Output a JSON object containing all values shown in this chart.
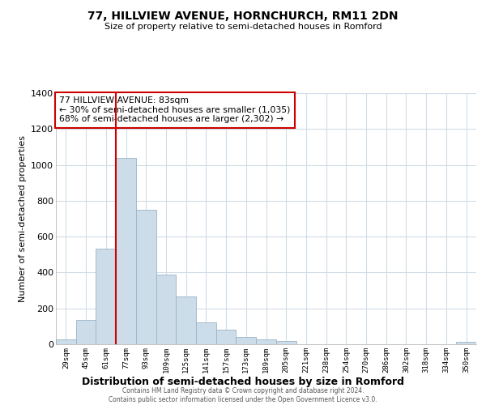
{
  "title": "77, HILLVIEW AVENUE, HORNCHURCH, RM11 2DN",
  "subtitle": "Size of property relative to semi-detached houses in Romford",
  "xlabel": "Distribution of semi-detached houses by size in Romford",
  "ylabel": "Number of semi-detached properties",
  "bar_color": "#ccdce8",
  "bar_edge_color": "#9ab4c8",
  "bin_labels": [
    "29sqm",
    "45sqm",
    "61sqm",
    "77sqm",
    "93sqm",
    "109sqm",
    "125sqm",
    "141sqm",
    "157sqm",
    "173sqm",
    "189sqm",
    "205sqm",
    "221sqm",
    "238sqm",
    "254sqm",
    "270sqm",
    "286sqm",
    "302sqm",
    "318sqm",
    "334sqm",
    "350sqm"
  ],
  "bar_heights": [
    28,
    135,
    535,
    1040,
    750,
    390,
    265,
    120,
    80,
    40,
    28,
    18,
    0,
    0,
    0,
    0,
    0,
    0,
    0,
    0,
    12
  ],
  "vline_color": "#cc0000",
  "annotation_text": "77 HILLVIEW AVENUE: 83sqm\n← 30% of semi-detached houses are smaller (1,035)\n68% of semi-detached houses are larger (2,302) →",
  "annotation_box_color": "#ffffff",
  "annotation_box_edge": "#cc0000",
  "ylim": [
    0,
    1400
  ],
  "yticks": [
    0,
    200,
    400,
    600,
    800,
    1000,
    1200,
    1400
  ],
  "footer": "Contains HM Land Registry data © Crown copyright and database right 2024.\nContains public sector information licensed under the Open Government Licence v3.0.",
  "background_color": "#ffffff",
  "grid_color": "#d0dce8"
}
